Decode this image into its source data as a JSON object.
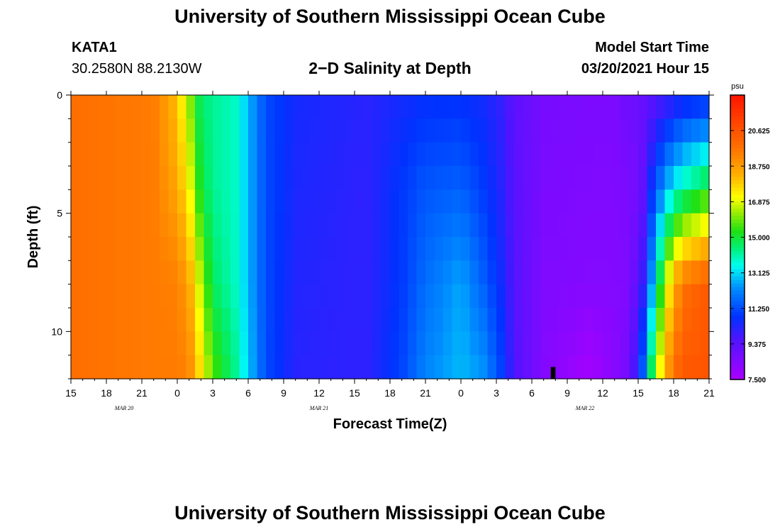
{
  "header": {
    "title": "University of Southern Mississippi Ocean Cube",
    "station": "KATA1",
    "coordinates": "30.2580N 88.2130W",
    "subtitle": "2−D Salinity at Depth",
    "model_start_label": "Model Start Time",
    "model_start_value": "03/20/2021 Hour 15"
  },
  "footer": {
    "title": "University of Southern Mississippi Ocean Cube"
  },
  "chart_data": {
    "type": "heatmap",
    "title": "2−D Salinity at Depth",
    "xlabel": "Forecast Time(Z)",
    "ylabel": "Depth (ft)",
    "x_range_hours": [
      0,
      54
    ],
    "y_range": [
      0,
      12
    ],
    "x_tick_labels": [
      "15",
      "18",
      "21",
      "0",
      "3",
      "6",
      "9",
      "12",
      "15",
      "18",
      "21",
      "0",
      "3",
      "6",
      "9",
      "12",
      "15",
      "18",
      "21"
    ],
    "y_tick_values": [
      0,
      5,
      10
    ],
    "y_tick_labels": [
      "0",
      "5",
      "10"
    ],
    "date_labels": [
      {
        "text": "MAR  20",
        "hour": 4.5
      },
      {
        "text": "MAR  21",
        "hour": 21
      },
      {
        "text": "MAR  22",
        "hour": 43.5
      }
    ],
    "colorbar": {
      "unit": "psu",
      "min": 7.5,
      "max": 22.5,
      "tick_values": [
        7.5,
        9.375,
        11.25,
        13.125,
        15.0,
        16.875,
        18.75,
        20.625
      ],
      "tick_labels": [
        "7.500",
        "9.375",
        "11.250",
        "13.125",
        "15.000",
        "16.875",
        "18.750",
        "20.625"
      ]
    },
    "profile_depths_ft": [
      0,
      4,
      8,
      12
    ],
    "profiles": [
      {
        "hour": 0,
        "salinity": [
          19.8,
          19.8,
          19.8,
          19.8
        ]
      },
      {
        "hour": 7,
        "salinity": [
          19.5,
          19.5,
          19.5,
          19.5
        ]
      },
      {
        "hour": 9,
        "salinity": [
          18.0,
          18.5,
          19.4,
          19.5
        ]
      },
      {
        "hour": 10,
        "salinity": [
          16.2,
          17.2,
          18.5,
          19.3
        ]
      },
      {
        "hour": 11,
        "salinity": [
          14.5,
          15.0,
          16.5,
          17.5
        ]
      },
      {
        "hour": 12,
        "salinity": [
          14.2,
          14.2,
          14.6,
          15.8
        ]
      },
      {
        "hour": 14,
        "salinity": [
          13.8,
          13.8,
          13.8,
          14.2
        ]
      },
      {
        "hour": 15,
        "salinity": [
          12.8,
          12.8,
          12.8,
          13.0
        ]
      },
      {
        "hour": 16.5,
        "salinity": [
          11.2,
          11.2,
          11.2,
          11.2
        ]
      },
      {
        "hour": 19,
        "salinity": [
          10.5,
          10.4,
          10.3,
          10.2
        ]
      },
      {
        "hour": 25,
        "salinity": [
          10.2,
          10.1,
          10.1,
          10.1
        ]
      },
      {
        "hour": 28,
        "salinity": [
          10.5,
          10.9,
          10.9,
          11.1
        ]
      },
      {
        "hour": 30,
        "salinity": [
          10.7,
          11.4,
          11.8,
          12.2
        ]
      },
      {
        "hour": 33,
        "salinity": [
          10.7,
          11.6,
          12.6,
          12.8
        ]
      },
      {
        "hour": 35,
        "salinity": [
          10.5,
          10.9,
          11.5,
          12.4
        ]
      },
      {
        "hour": 36.5,
        "salinity": [
          10.0,
          10.2,
          10.5,
          11.0
        ]
      },
      {
        "hour": 37.5,
        "salinity": [
          9.3,
          9.4,
          9.5,
          9.6
        ]
      },
      {
        "hour": 40,
        "salinity": [
          8.7,
          8.6,
          8.5,
          8.4
        ]
      },
      {
        "hour": 44,
        "salinity": [
          8.6,
          8.5,
          8.4,
          7.6
        ]
      },
      {
        "hour": 46,
        "salinity": [
          8.6,
          8.5,
          8.4,
          8.3
        ]
      },
      {
        "hour": 47,
        "salinity": [
          8.9,
          8.6,
          8.5,
          8.7
        ]
      },
      {
        "hour": 48,
        "salinity": [
          9.0,
          8.8,
          9.3,
          10.3
        ]
      },
      {
        "hour": 48.5,
        "salinity": [
          9.1,
          9.3,
          10.2,
          12.0
        ]
      },
      {
        "hour": 49,
        "salinity": [
          9.3,
          10.5,
          12.0,
          14.5
        ]
      },
      {
        "hour": 50,
        "salinity": [
          9.6,
          12.2,
          15.5,
          17.8
        ]
      },
      {
        "hour": 51,
        "salinity": [
          10.0,
          13.5,
          18.5,
          20.0
        ]
      },
      {
        "hour": 52,
        "salinity": [
          10.3,
          14.2,
          19.8,
          20.5
        ]
      },
      {
        "hour": 54,
        "salinity": [
          10.6,
          15.2,
          20.5,
          20.6
        ]
      }
    ],
    "missing_cells": [
      {
        "hour_start": 40.6,
        "hour_end": 41.0,
        "depth_start": 11.5,
        "depth_end": 12
      }
    ]
  }
}
